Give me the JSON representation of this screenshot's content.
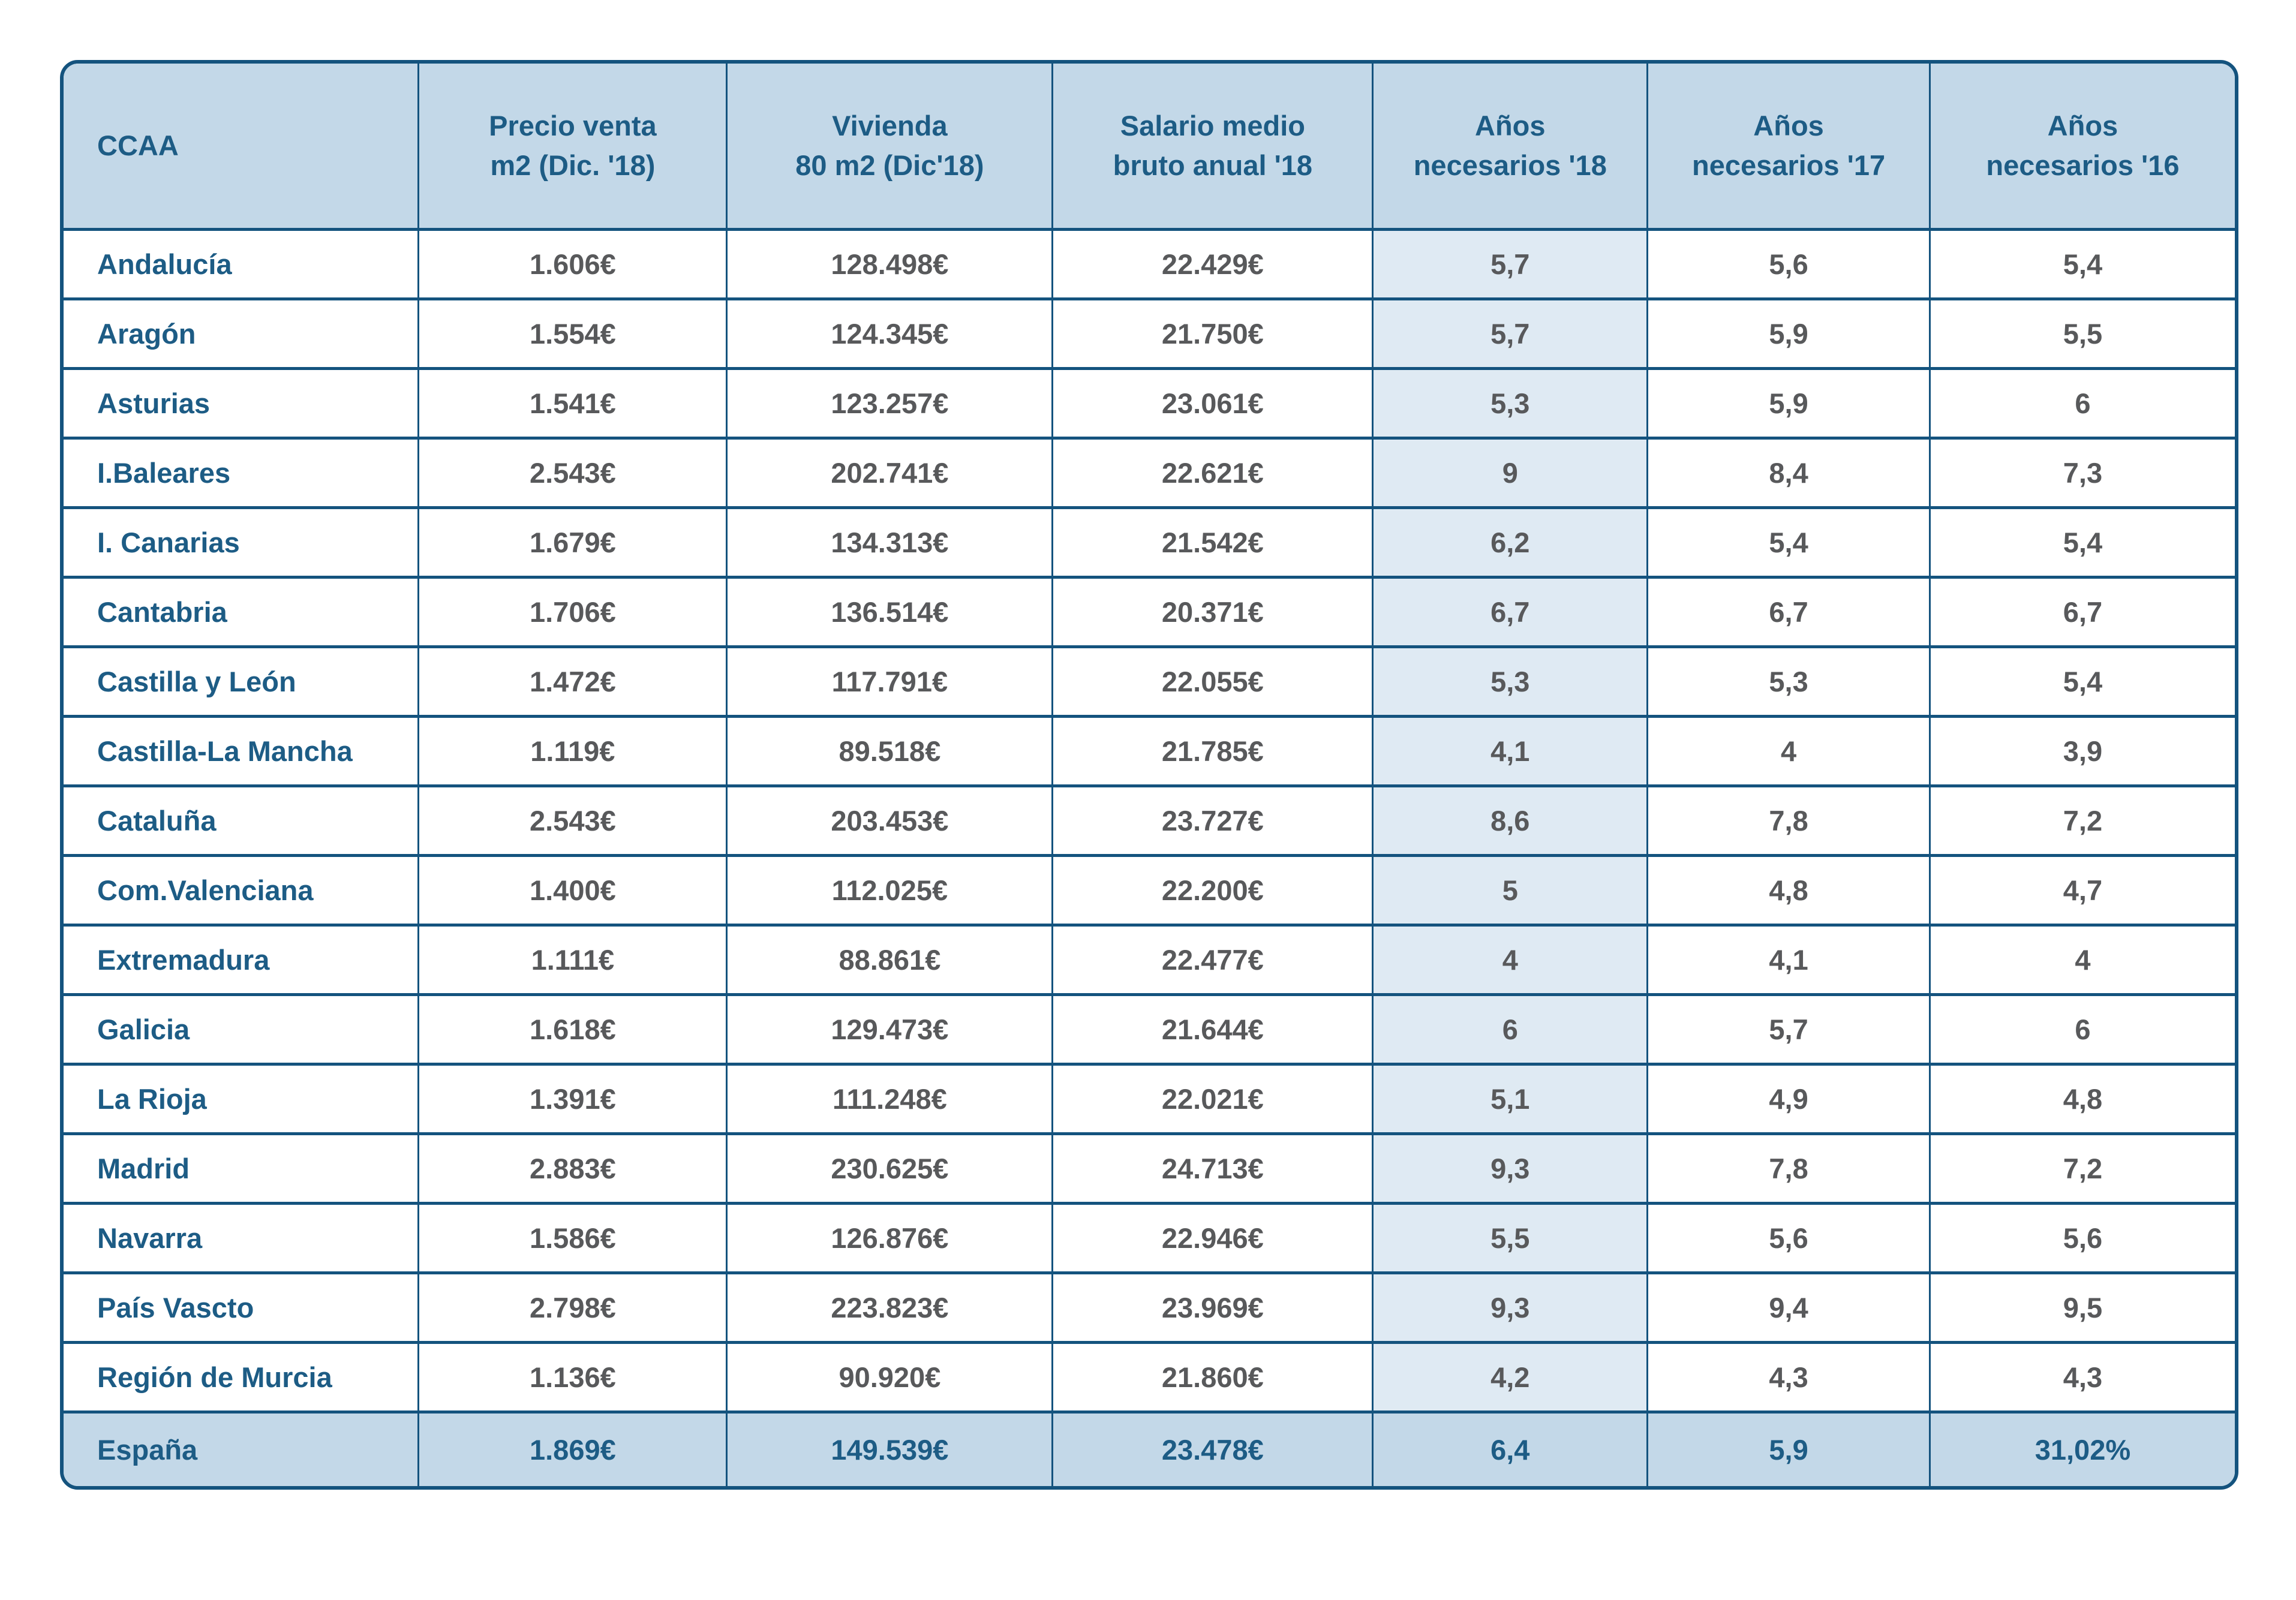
{
  "colors": {
    "border": "#14537e",
    "header_bg": "#c3d8e8",
    "highlight_col_bg": "#dfeaf3",
    "header_text": "#1d5c85",
    "body_text": "#58595b"
  },
  "table": {
    "columns": [
      {
        "id": "ccaa",
        "label": "CCAA"
      },
      {
        "id": "precio-venta",
        "label": "Precio venta\nm2 (Dic. '18)"
      },
      {
        "id": "vivienda",
        "label": "Vivienda\n80 m2 (Dic'18)"
      },
      {
        "id": "salario",
        "label": "Salario medio\nbruto anual '18"
      },
      {
        "id": "anos-18",
        "label": "Años\nnecesarios '18"
      },
      {
        "id": "anos-17",
        "label": "Años\nnecesarios '17"
      },
      {
        "id": "anos-16",
        "label": "Años\nnecesarios '16"
      }
    ],
    "rows": [
      {
        "cells": [
          "Andalucía",
          "1.606€",
          "128.498€",
          "22.429€",
          "5,7",
          "5,6",
          "5,4"
        ]
      },
      {
        "cells": [
          "Aragón",
          "1.554€",
          "124.345€",
          "21.750€",
          "5,7",
          "5,9",
          "5,5"
        ]
      },
      {
        "cells": [
          "Asturias",
          "1.541€",
          "123.257€",
          "23.061€",
          "5,3",
          "5,9",
          "6"
        ]
      },
      {
        "cells": [
          "I.Baleares",
          "2.543€",
          "202.741€",
          "22.621€",
          "9",
          "8,4",
          "7,3"
        ]
      },
      {
        "cells": [
          "I. Canarias",
          "1.679€",
          "134.313€",
          "21.542€",
          "6,2",
          "5,4",
          "5,4"
        ]
      },
      {
        "cells": [
          "Cantabria",
          "1.706€",
          "136.514€",
          "20.371€",
          "6,7",
          "6,7",
          "6,7"
        ]
      },
      {
        "cells": [
          "Castilla y León",
          "1.472€",
          "117.791€",
          "22.055€",
          "5,3",
          "5,3",
          "5,4"
        ]
      },
      {
        "cells": [
          "Castilla-La Mancha",
          "1.119€",
          "89.518€",
          "21.785€",
          "4,1",
          "4",
          "3,9"
        ]
      },
      {
        "cells": [
          "Cataluña",
          "2.543€",
          "203.453€",
          "23.727€",
          "8,6",
          "7,8",
          "7,2"
        ]
      },
      {
        "cells": [
          "Com.Valenciana",
          "1.400€",
          "112.025€",
          "22.200€",
          "5",
          "4,8",
          "4,7"
        ]
      },
      {
        "cells": [
          "Extremadura",
          "1.111€",
          "88.861€",
          "22.477€",
          "4",
          "4,1",
          "4"
        ]
      },
      {
        "cells": [
          "Galicia",
          "1.618€",
          "129.473€",
          "21.644€",
          "6",
          "5,7",
          "6"
        ]
      },
      {
        "cells": [
          "La Rioja",
          "1.391€",
          "111.248€",
          "22.021€",
          "5,1",
          "4,9",
          "4,8"
        ]
      },
      {
        "cells": [
          "Madrid",
          "2.883€",
          "230.625€",
          "24.713€",
          "9,3",
          "7,8",
          "7,2"
        ]
      },
      {
        "cells": [
          "Navarra",
          "1.586€",
          "126.876€",
          "22.946€",
          "5,5",
          "5,6",
          "5,6"
        ]
      },
      {
        "cells": [
          "País Vascto",
          "2.798€",
          "223.823€",
          "23.969€",
          "9,3",
          "9,4",
          "9,5"
        ]
      },
      {
        "cells": [
          "Región de Murcia",
          "1.136€",
          "90.920€",
          "21.860€",
          "4,2",
          "4,3",
          "4,3"
        ]
      }
    ],
    "footer": {
      "cells": [
        "España",
        "1.869€",
        "149.539€",
        "23.478€",
        "6,4",
        "5,9",
        "31,02%"
      ]
    }
  },
  "chart_data": {
    "type": "table",
    "title": "",
    "columns": [
      "CCAA",
      "Precio venta m2 (Dic. '18)",
      "Vivienda 80 m2 (Dic'18)",
      "Salario medio bruto anual '18",
      "Años necesarios '18",
      "Años necesarios '17",
      "Años necesarios '16"
    ],
    "rows": [
      [
        "Andalucía",
        1606,
        128498,
        22429,
        5.7,
        5.6,
        5.4
      ],
      [
        "Aragón",
        1554,
        124345,
        21750,
        5.7,
        5.9,
        5.5
      ],
      [
        "Asturias",
        1541,
        123257,
        23061,
        5.3,
        5.9,
        6
      ],
      [
        "I.Baleares",
        2543,
        202741,
        22621,
        9,
        8.4,
        7.3
      ],
      [
        "I. Canarias",
        1679,
        134313,
        21542,
        6.2,
        5.4,
        5.4
      ],
      [
        "Cantabria",
        1706,
        136514,
        20371,
        6.7,
        6.7,
        6.7
      ],
      [
        "Castilla y León",
        1472,
        117791,
        22055,
        5.3,
        5.3,
        5.4
      ],
      [
        "Castilla-La Mancha",
        1119,
        89518,
        21785,
        4.1,
        4,
        3.9
      ],
      [
        "Cataluña",
        2543,
        203453,
        23727,
        8.6,
        7.8,
        7.2
      ],
      [
        "Com.Valenciana",
        1400,
        112025,
        22200,
        5,
        4.8,
        4.7
      ],
      [
        "Extremadura",
        1111,
        88861,
        22477,
        4,
        4.1,
        4
      ],
      [
        "Galicia",
        1618,
        129473,
        21644,
        6,
        5.7,
        6
      ],
      [
        "La Rioja",
        1391,
        111248,
        22021,
        5.1,
        4.9,
        4.8
      ],
      [
        "Madrid",
        2883,
        230625,
        24713,
        9.3,
        7.8,
        7.2
      ],
      [
        "Navarra",
        1586,
        126876,
        22946,
        5.5,
        5.6,
        5.6
      ],
      [
        "País Vascto",
        2798,
        223823,
        23969,
        9.3,
        9.4,
        9.5
      ],
      [
        "Región de Murcia",
        1136,
        90920,
        21860,
        4.2,
        4.3,
        4.3
      ],
      [
        "España",
        1869,
        149539,
        23478,
        6.4,
        5.9,
        "31,02%"
      ]
    ]
  }
}
